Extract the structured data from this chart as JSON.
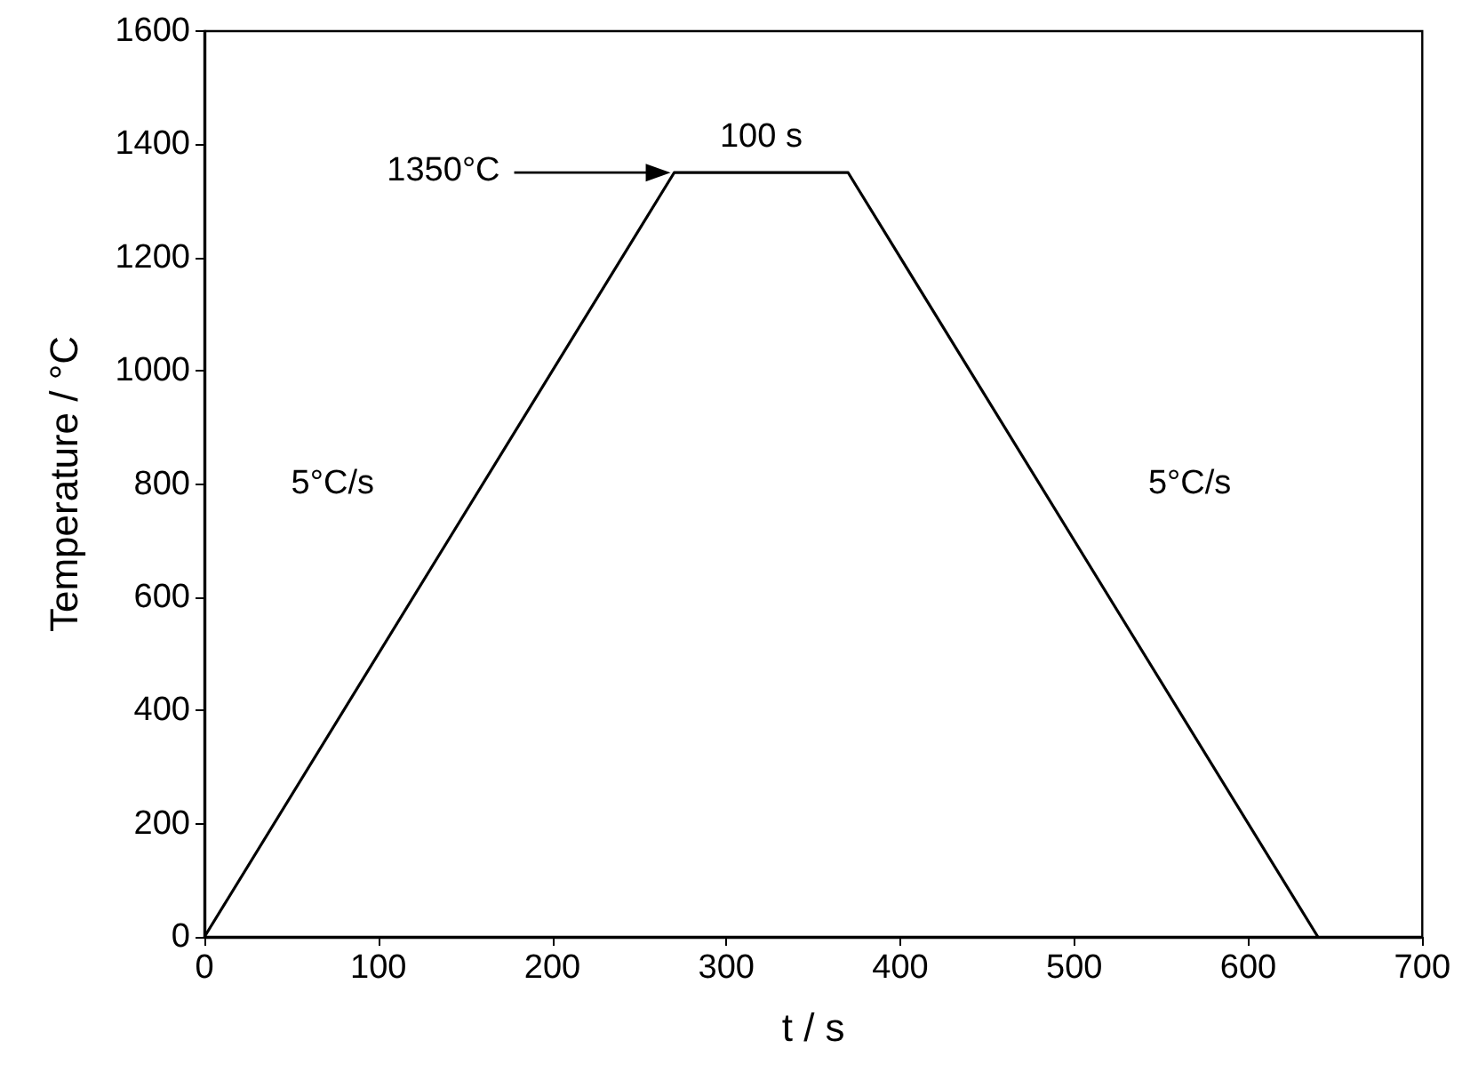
{
  "chart_data": {
    "type": "line",
    "xlabel": "t / s",
    "ylabel": "Temperature / °C",
    "x": [
      0,
      270,
      370,
      640
    ],
    "series": [
      {
        "color": "#000000",
        "values": [
          0,
          1350,
          1350,
          0
        ]
      }
    ],
    "xlim": [
      0,
      700
    ],
    "xticks": [
      0,
      100,
      200,
      300,
      400,
      500,
      600,
      700
    ],
    "ylim": [
      0,
      1600
    ],
    "yticks": [
      0,
      200,
      400,
      600,
      800,
      1000,
      1200,
      1400,
      1600
    ],
    "grid": false,
    "marker": "none",
    "line_style": "solid",
    "annotations": [
      "1350°C",
      "5°C/s",
      "100 s",
      "5°C/s"
    ]
  }
}
